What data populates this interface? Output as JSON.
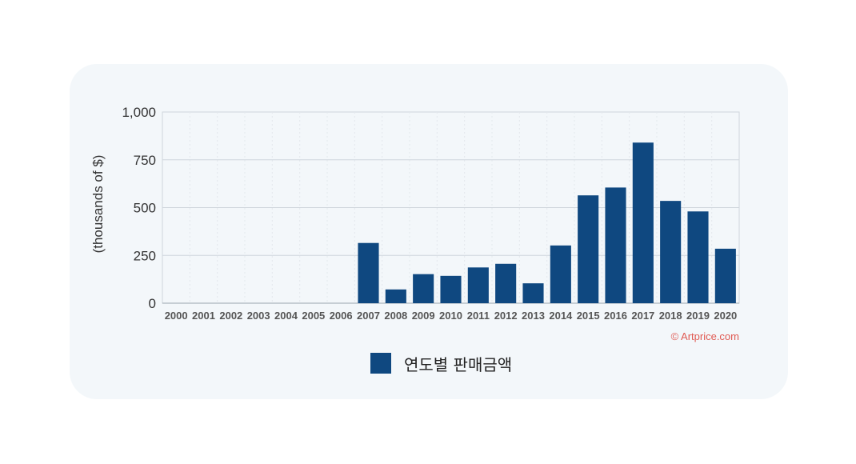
{
  "chart_data": {
    "type": "bar",
    "categories": [
      "2000",
      "2001",
      "2002",
      "2003",
      "2004",
      "2005",
      "2006",
      "2007",
      "2008",
      "2009",
      "2010",
      "2011",
      "2012",
      "2013",
      "2014",
      "2015",
      "2016",
      "2017",
      "2018",
      "2019",
      "2020"
    ],
    "series": [
      {
        "name": "연도별 판매금액",
        "values": [
          0,
          0,
          0,
          0,
          0,
          0,
          0,
          315,
          72,
          152,
          143,
          187,
          206,
          104,
          302,
          564,
          605,
          840,
          535,
          480,
          285
        ]
      }
    ],
    "ylabel": "(thousands of $)",
    "xlabel": "",
    "ylim": [
      0,
      1000
    ],
    "yticks": [
      0,
      250,
      500,
      750,
      1000
    ],
    "ytick_labels": [
      "0",
      "250",
      "500",
      "750",
      "1,000"
    ],
    "grid": true,
    "legend_position": "bottom",
    "colors": {
      "bar": "#0f4880",
      "grid": "#cfd6dc",
      "credit": "#e05a52"
    },
    "source_note": "© Artprice.com"
  }
}
